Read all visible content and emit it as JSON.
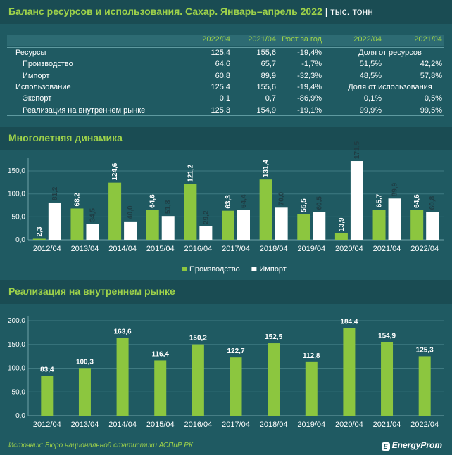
{
  "header": {
    "title": "Баланс ресурсов и использования. Сахар. Январь–апрель 2022",
    "unit": "тыс. тонн"
  },
  "table": {
    "columns": [
      "2022/04",
      "2021/04",
      "Рост за год",
      "2022/04",
      "2021/04"
    ],
    "rows": [
      {
        "label": "Ресурсы",
        "indent": false,
        "v1": "125,4",
        "v2": "155,6",
        "v3": "-19,4%",
        "v4": "Доля от ресурсов",
        "v5": ""
      },
      {
        "label": "Производство",
        "indent": true,
        "v1": "64,6",
        "v2": "65,7",
        "v3": "-1,7%",
        "v4": "51,5%",
        "v5": "42,2%"
      },
      {
        "label": "Импорт",
        "indent": true,
        "v1": "60,8",
        "v2": "89,9",
        "v3": "-32,3%",
        "v4": "48,5%",
        "v5": "57,8%"
      },
      {
        "label": "Использование",
        "indent": false,
        "v1": "125,4",
        "v2": "155,6",
        "v3": "-19,4%",
        "v4": "Доля от использования",
        "v5": ""
      },
      {
        "label": "Экспорт",
        "indent": true,
        "v1": "0,1",
        "v2": "0,7",
        "v3": "-86,9%",
        "v4": "0,1%",
        "v5": "0,5%"
      },
      {
        "label": "Реализация на внутреннем рынке",
        "indent": true,
        "v1": "125,3",
        "v2": "154,9",
        "v3": "-19,1%",
        "v4": "99,9%",
        "v5": "99,5%"
      }
    ]
  },
  "section1": {
    "title": "Многолетняя динамика"
  },
  "section2": {
    "title": "Реализация на внутреннем рынке"
  },
  "footer": {
    "source": "Источник: Бюро национальной статистики АСПиР РК",
    "brand": "EnergyProm",
    "brand_mark": "E"
  },
  "colors": {
    "green": "#8cc63f",
    "white": "#ffffff",
    "band": "#1a4c53",
    "background": "#1f5a62"
  },
  "chart_data": [
    {
      "type": "bar",
      "categories": [
        "2012/04",
        "2013/04",
        "2014/04",
        "2015/04",
        "2016/04",
        "2017/04",
        "2018/04",
        "2019/04",
        "2020/04",
        "2021/04",
        "2022/04"
      ],
      "series": [
        {
          "name": "Производство",
          "values": [
            2.3,
            68.2,
            124.6,
            64.6,
            121.2,
            63.3,
            131.4,
            55.5,
            13.9,
            65.7,
            64.6
          ],
          "labels": [
            "2,3",
            "68,2",
            "124,6",
            "64,6",
            "121,2",
            "63,3",
            "131,4",
            "55,5",
            "13,9",
            "65,7",
            "64,6"
          ]
        },
        {
          "name": "Импорт",
          "values": [
            81.2,
            34.5,
            40.0,
            51.8,
            29.2,
            64.4,
            70.0,
            60.5,
            171.5,
            89.9,
            60.8
          ],
          "labels": [
            "81,2",
            "34,5",
            "40,0",
            "51,8",
            "29,2",
            "64,4",
            "70,0",
            "60,5",
            "171,5",
            "89,9",
            "60,8"
          ]
        }
      ],
      "ylim": [
        0,
        170
      ],
      "yticks": [
        "0,0",
        "50,0",
        "100,0",
        "150,0"
      ],
      "legend": "bottom-center"
    },
    {
      "type": "bar",
      "categories": [
        "2012/04",
        "2013/04",
        "2014/04",
        "2015/04",
        "2016/04",
        "2017/04",
        "2018/04",
        "2019/04",
        "2020/04",
        "2021/04",
        "2022/04"
      ],
      "series": [
        {
          "name": "",
          "values": [
            83.4,
            100.3,
            163.6,
            116.4,
            150.2,
            122.7,
            152.5,
            112.8,
            184.4,
            154.9,
            125.3
          ],
          "labels": [
            "83,4",
            "100,3",
            "163,6",
            "116,4",
            "150,2",
            "122,7",
            "152,5",
            "112,8",
            "184,4",
            "154,9",
            "125,3"
          ]
        }
      ],
      "ylim": [
        0,
        200
      ],
      "yticks": [
        "0,0",
        "50,0",
        "100,0",
        "150,0",
        "200,0"
      ]
    }
  ]
}
